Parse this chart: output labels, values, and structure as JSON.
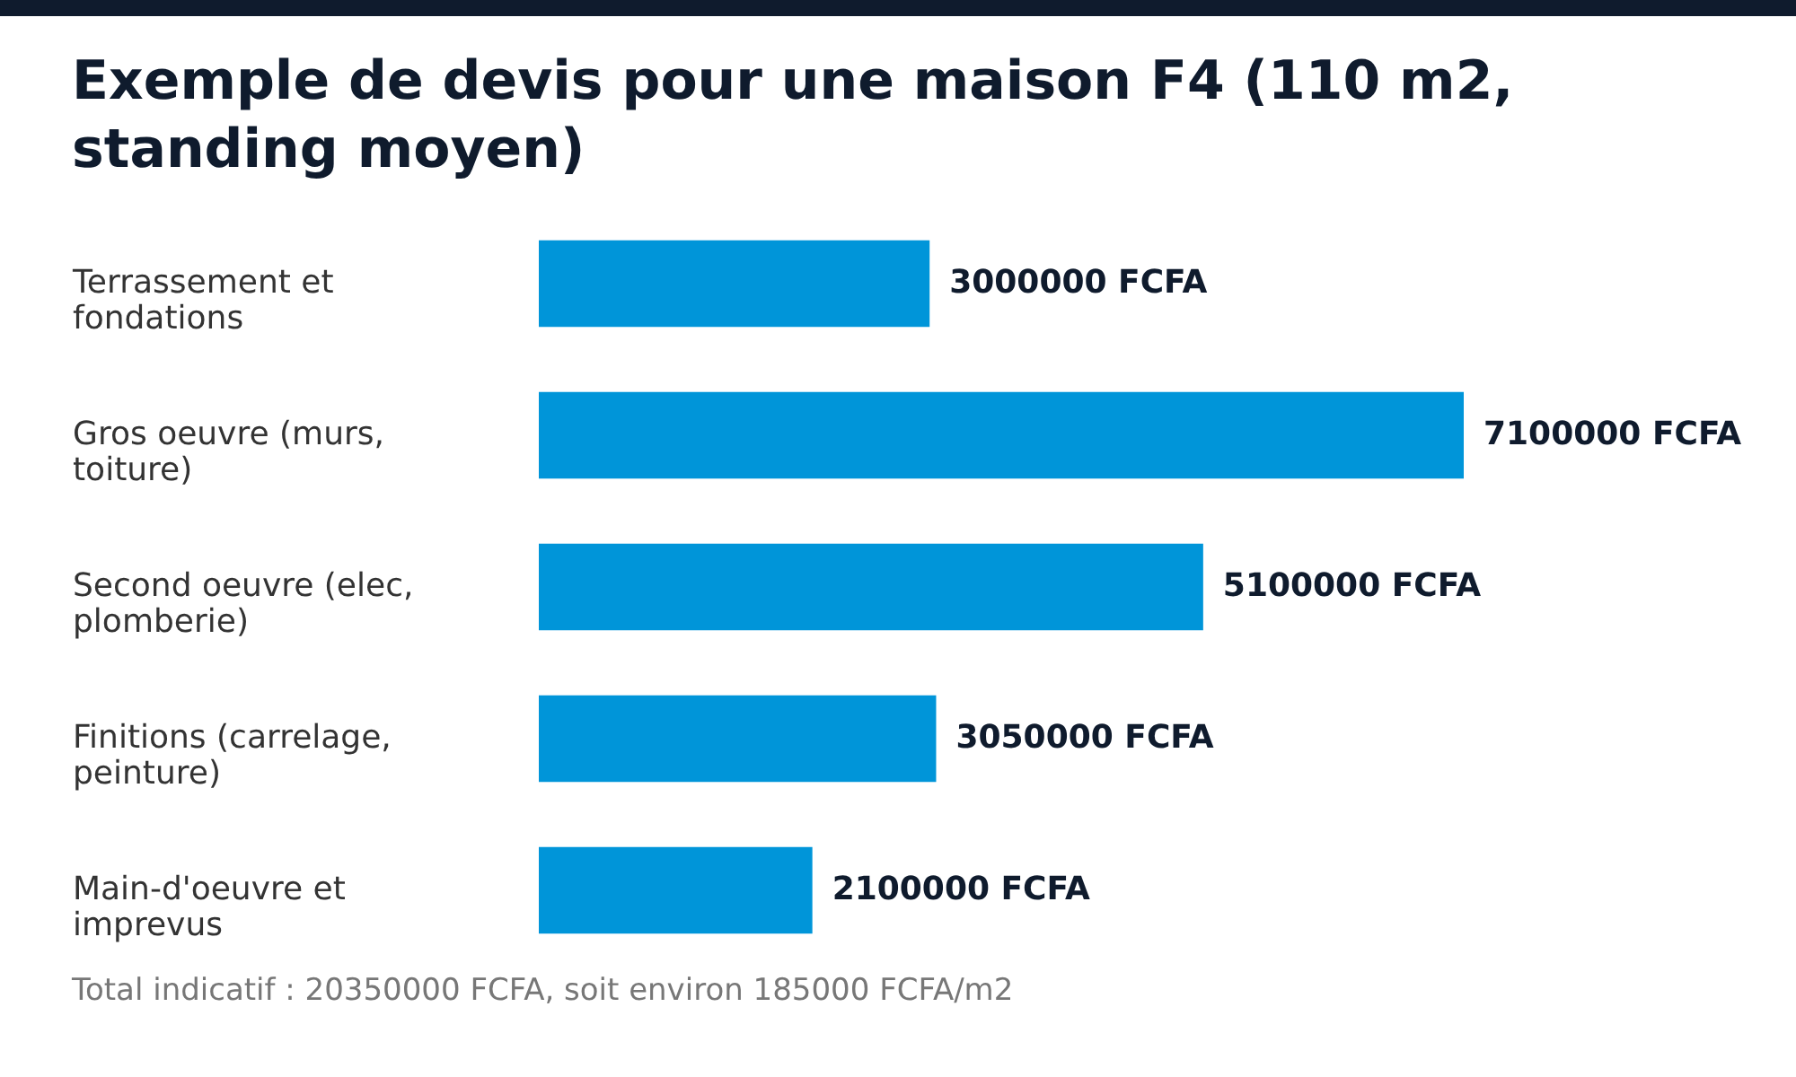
{
  "chart_data": {
    "type": "bar",
    "orientation": "horizontal",
    "title": "Exemple de devis pour une maison F4 (110 m2, standing moyen)",
    "categories": [
      "Terrassement et fondations",
      "Gros oeuvre (murs, toiture)",
      "Second oeuvre (elec, plomberie)",
      "Finitions (carrelage, peinture)",
      "Main-d'oeuvre et imprevus"
    ],
    "values": [
      3000000,
      7100000,
      5100000,
      3050000,
      2100000
    ],
    "value_labels": [
      "3000000 FCFA",
      "7100000 FCFA",
      "5100000 FCFA",
      "3050000 FCFA",
      "2100000 FCFA"
    ],
    "color": "#0095d9",
    "annotations": [
      "Total indicatif : 20350000 FCFA, soit environ 185000 FCFA/m2"
    ]
  }
}
